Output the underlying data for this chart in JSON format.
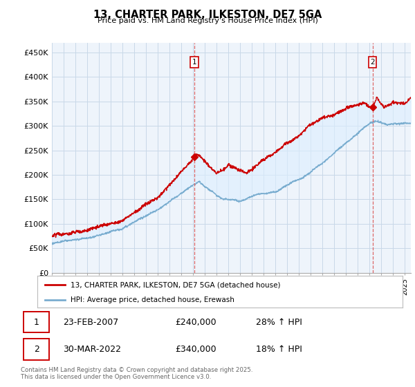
{
  "title": "13, CHARTER PARK, ILKESTON, DE7 5GA",
  "subtitle": "Price paid vs. HM Land Registry's House Price Index (HPI)",
  "ylim": [
    0,
    470000
  ],
  "yticks": [
    0,
    50000,
    100000,
    150000,
    200000,
    250000,
    300000,
    350000,
    400000,
    450000
  ],
  "ytick_labels": [
    "£0",
    "£50K",
    "£100K",
    "£150K",
    "£200K",
    "£250K",
    "£300K",
    "£350K",
    "£400K",
    "£450K"
  ],
  "xlim_start": 1995.0,
  "xlim_end": 2025.5,
  "red_line_color": "#cc0000",
  "blue_line_color": "#7aadcf",
  "fill_color": "#ddeeff",
  "vline_color": "#dd6666",
  "marker1_year": 2007.13,
  "marker2_year": 2022.24,
  "sale1_value": 240000,
  "sale2_value": 340000,
  "sale1_date": "23-FEB-2007",
  "sale2_date": "30-MAR-2022",
  "sale1_hpi": "28% ↑ HPI",
  "sale2_hpi": "18% ↑ HPI",
  "legend_red": "13, CHARTER PARK, ILKESTON, DE7 5GA (detached house)",
  "legend_blue": "HPI: Average price, detached house, Erewash",
  "footer": "Contains HM Land Registry data © Crown copyright and database right 2025.\nThis data is licensed under the Open Government Licence v3.0.",
  "background_color": "#ffffff",
  "chart_bg_color": "#eef4fb",
  "grid_color": "#c8d8e8"
}
